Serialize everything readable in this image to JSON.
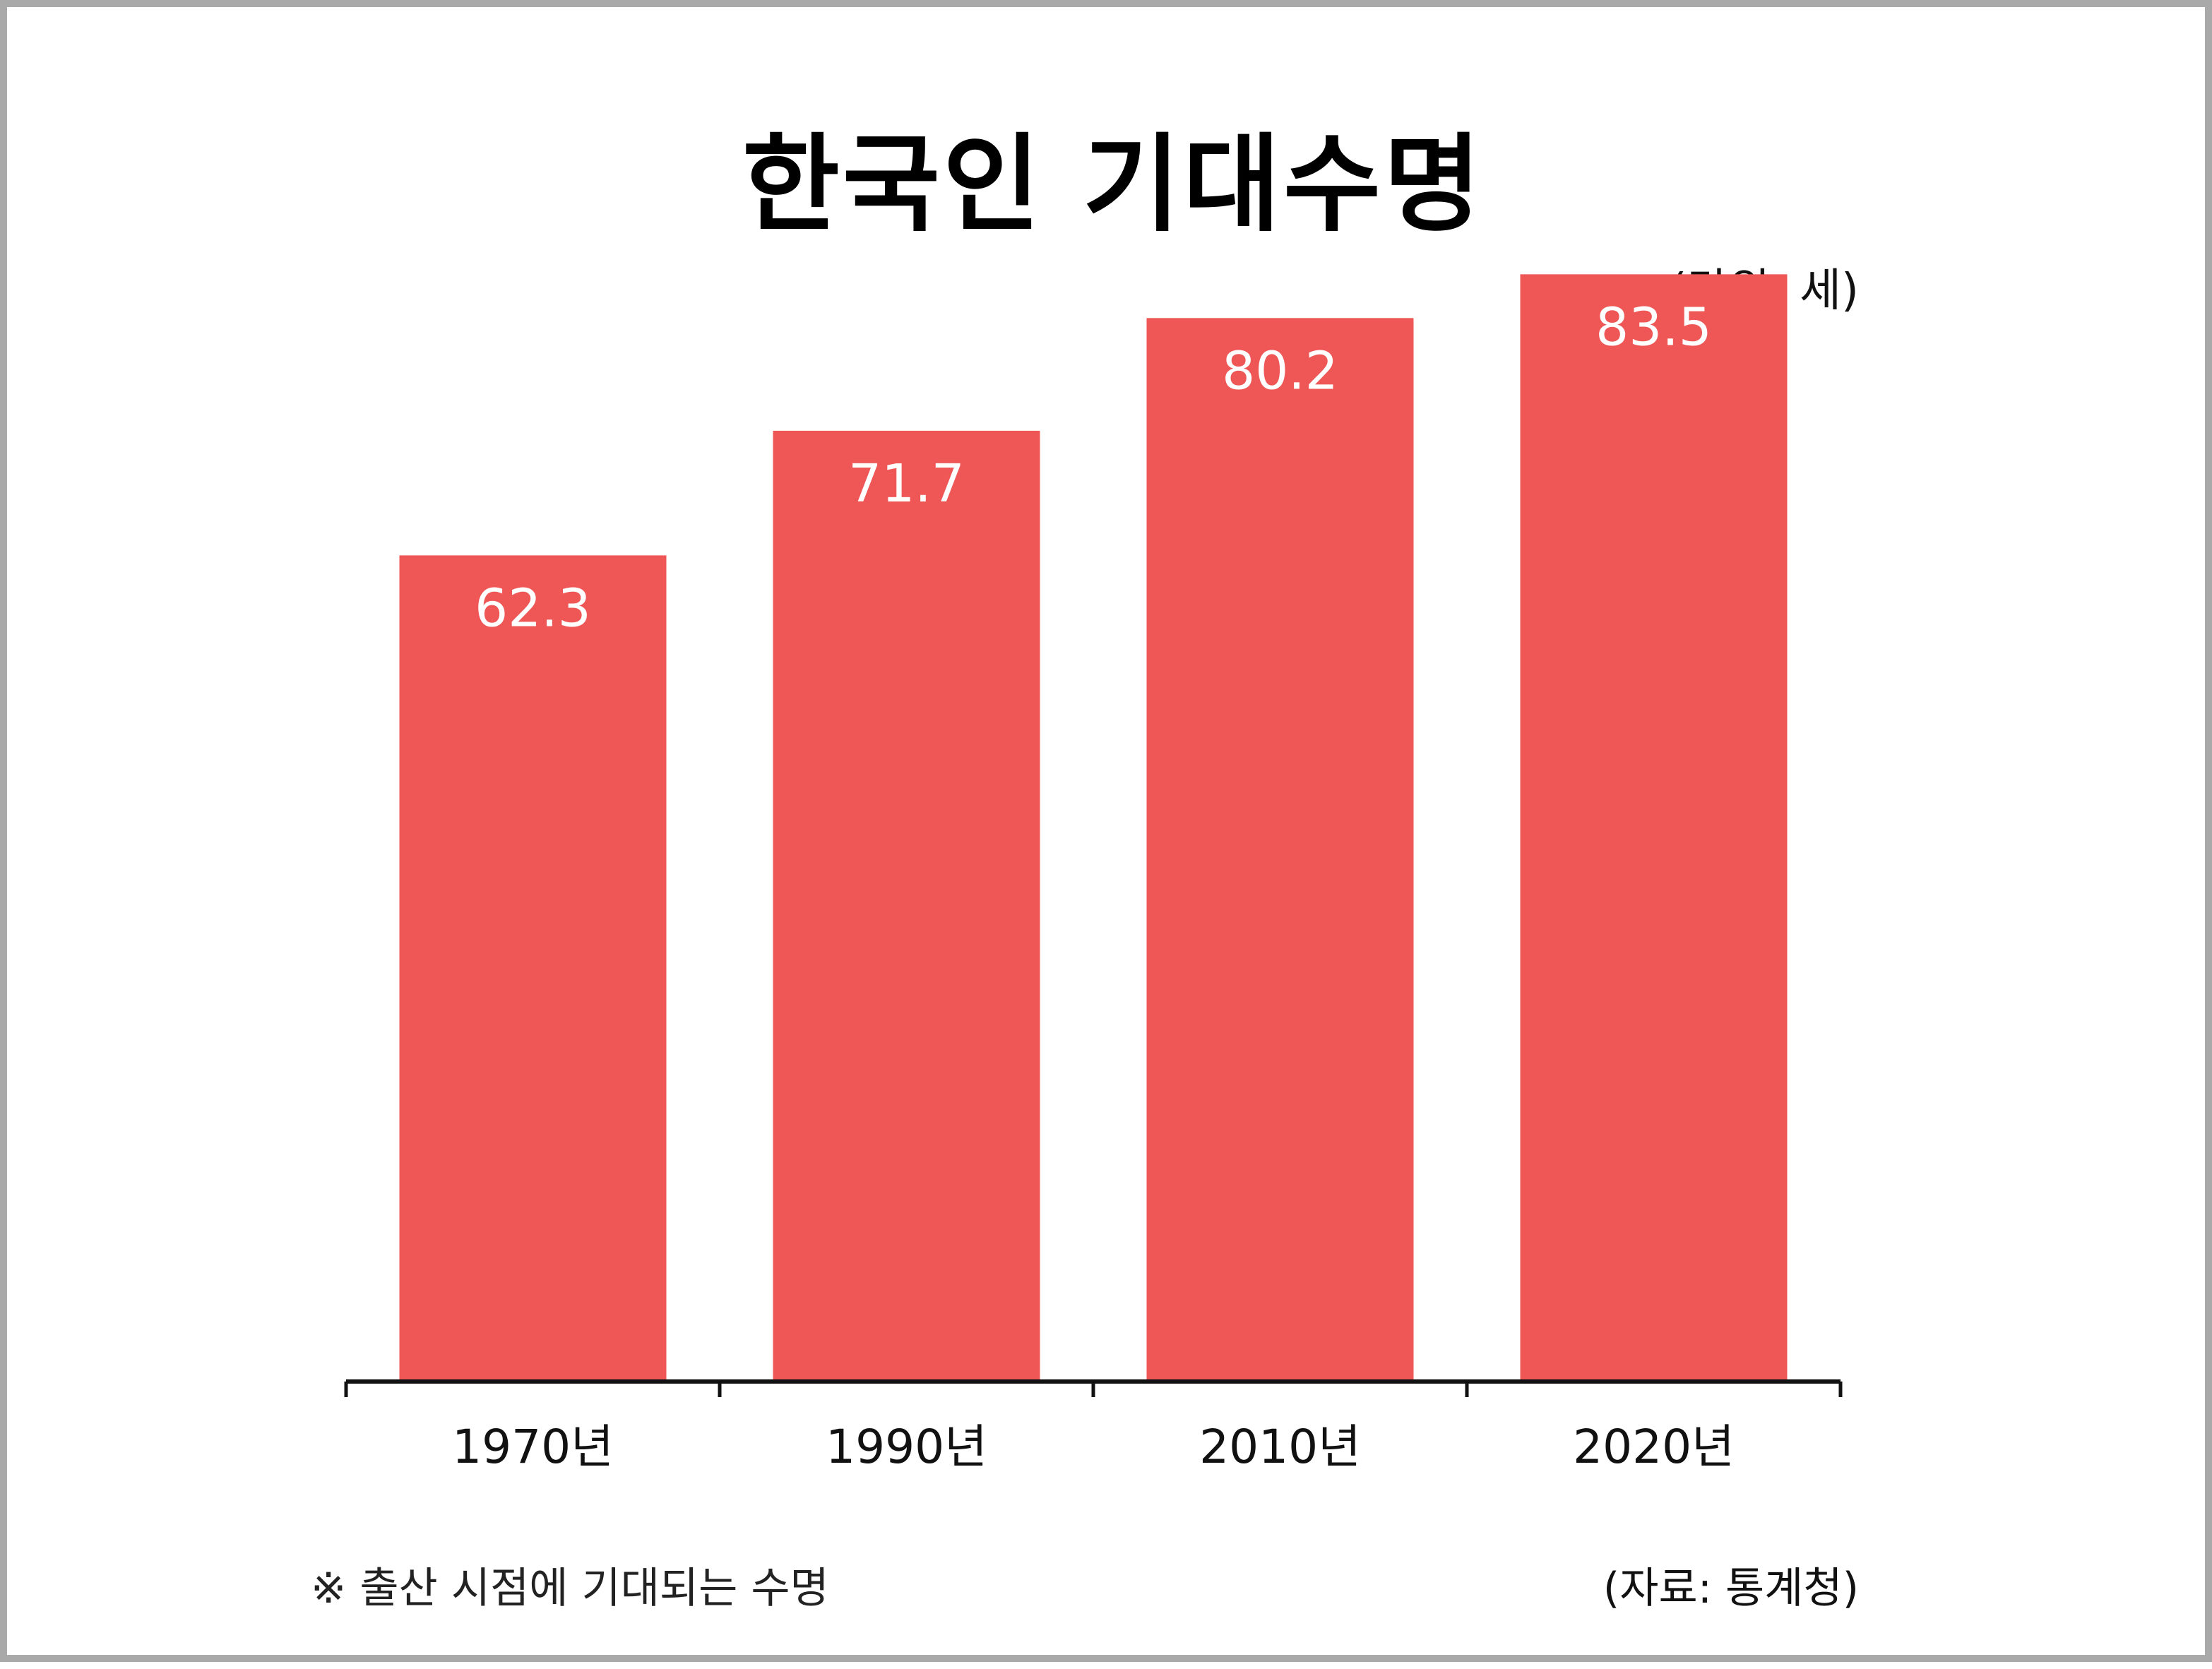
{
  "title": "한국인 기대수명",
  "unit_note": "(단위: 세)",
  "footnote": "※ 출산 시점에 기대되는 수명",
  "source": "(자료: 통계청)",
  "colors": {
    "bar": "#ef5757",
    "axis": "#111111",
    "bar_label": "#ffffff"
  },
  "chart_data": {
    "type": "bar",
    "categories": [
      "1970년",
      "1990년",
      "2010년",
      "2020년"
    ],
    "values": [
      62.3,
      71.7,
      80.2,
      83.5
    ],
    "data_labels": [
      "62.3",
      "71.7",
      "80.2",
      "83.5"
    ],
    "title": "한국인 기대수명",
    "xlabel": "",
    "ylabel": "",
    "ylim": [
      0,
      93
    ],
    "grid": false,
    "legend": "none"
  }
}
